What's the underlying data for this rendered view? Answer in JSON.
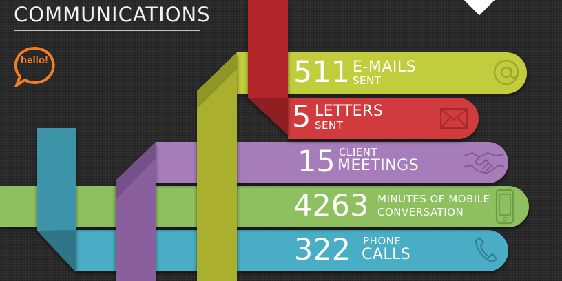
{
  "header": {
    "title": "COMMUNICATIONS",
    "badge_text": "hello!"
  },
  "colors": {
    "accent_orange": "#f07e26",
    "emails": "#c2cd3c",
    "letters": "#d23a3d",
    "meetings": "#a77cbb",
    "mobile": "#8fc060",
    "phone": "#4aaec5"
  },
  "stats": [
    {
      "number": "511",
      "line1": "E-MAILS",
      "line2": "SENT",
      "icon": "at-sign-icon"
    },
    {
      "number": "5",
      "line1": "LETTERS",
      "line2": "SENT",
      "icon": "envelope-icon"
    },
    {
      "number": "15",
      "line1": "CLIENT",
      "line2": "MEETINGS",
      "icon": "handshake-icon"
    },
    {
      "number": "4263",
      "line1": "MINUTES OF MOBILE",
      "line2": "CONVERSATION",
      "icon": "mobile-phone-icon"
    },
    {
      "number": "322",
      "line1": "PHONE",
      "line2": "CALLS",
      "icon": "phone-handset-icon"
    }
  ]
}
